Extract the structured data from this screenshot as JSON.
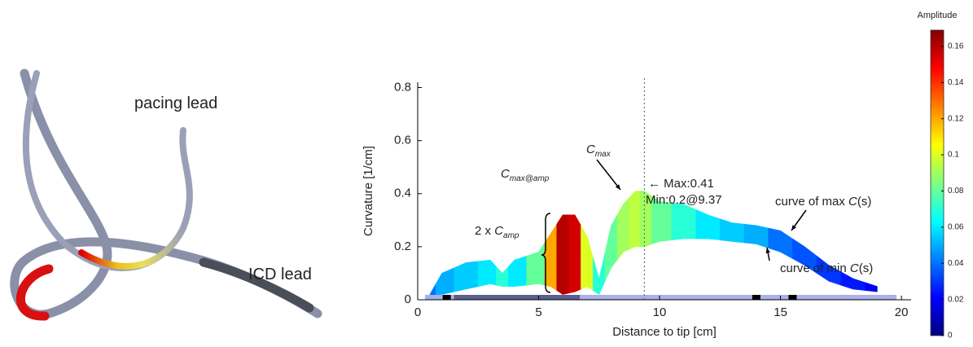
{
  "image_labels": {
    "pacing": "pacing lead",
    "icd": "ICD lead"
  },
  "chart_data": {
    "type": "band",
    "xlabel": "Distance to tip [cm]",
    "ylabel": "Curvature [1/cm]",
    "x": [
      0.5,
      1,
      2,
      3,
      3.5,
      4,
      5,
      5.5,
      6,
      6.5,
      7,
      7.5,
      8,
      8.5,
      9,
      9.37,
      10,
      11,
      12,
      13,
      14,
      15,
      16,
      17,
      18,
      19
    ],
    "max": [
      0.02,
      0.1,
      0.14,
      0.15,
      0.1,
      0.15,
      0.18,
      0.25,
      0.32,
      0.32,
      0.24,
      0.08,
      0.28,
      0.36,
      0.41,
      0.41,
      0.37,
      0.36,
      0.32,
      0.29,
      0.28,
      0.26,
      0.2,
      0.13,
      0.08,
      0.05
    ],
    "min": [
      0.01,
      0.02,
      0.04,
      0.06,
      0.05,
      0.05,
      0.06,
      0.05,
      0.02,
      0.03,
      0.05,
      0.02,
      0.12,
      0.18,
      0.2,
      0.2,
      0.22,
      0.23,
      0.23,
      0.22,
      0.21,
      0.18,
      0.13,
      0.07,
      0.04,
      0.03
    ],
    "amplitude": [
      0.04,
      0.05,
      0.055,
      0.06,
      0.07,
      0.06,
      0.08,
      0.12,
      0.16,
      0.155,
      0.1,
      0.07,
      0.08,
      0.09,
      0.095,
      0.09,
      0.08,
      0.07,
      0.06,
      0.055,
      0.05,
      0.04,
      0.035,
      0.03,
      0.025,
      0.02
    ],
    "xlim": [
      0,
      20.4
    ],
    "ylim": [
      0,
      0.82
    ],
    "xticks": [
      0,
      5,
      10,
      15,
      20
    ],
    "yticks": [
      0,
      0.2,
      0.4,
      0.6,
      0.8
    ],
    "marker_line_x": 9.37,
    "colorbar": {
      "label": "Amplitude",
      "lim": [
        0,
        0.169
      ],
      "ticks": [
        0,
        0.02,
        0.04,
        0.06,
        0.08,
        0.1,
        0.12,
        0.14,
        0.16
      ]
    },
    "annotations": {
      "cmaxamp": {
        "base": "C",
        "sub": "max@amp"
      },
      "camp": {
        "prefix": "2 x ",
        "base": "C",
        "sub": "amp"
      },
      "cmax": {
        "base": "C",
        "sub": "max"
      },
      "maxtext": "← Max:0.41",
      "mintext": "Min:0.2@9.37",
      "curvemax": {
        "prefix": "curve of max ",
        "base": "C",
        "suffix": "(s)"
      },
      "curvemin": {
        "prefix": "curve of min ",
        "base": "C",
        "suffix": "(s)"
      }
    }
  }
}
